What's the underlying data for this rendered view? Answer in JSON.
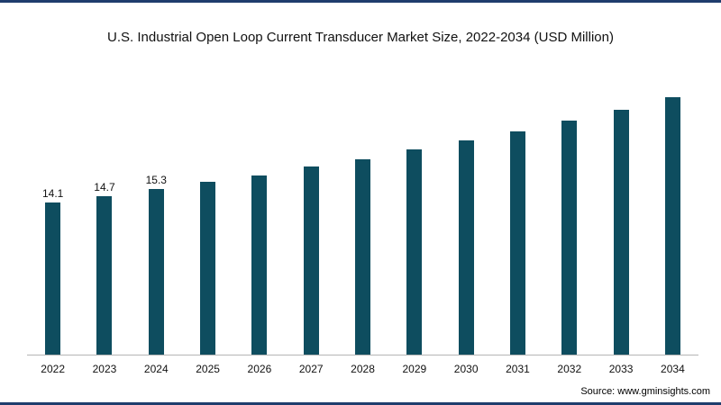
{
  "page": {
    "source": "Source: www.gminsights.com"
  },
  "colors": {
    "bar": "#0e4d5f",
    "frame": "#1f3d6d",
    "axis": "#b5b5b5"
  },
  "chart_data": {
    "type": "bar",
    "title": "U.S. Industrial Open Loop Current Transducer Market Size, 2022-2034 (USD Million)",
    "categories": [
      "2022",
      "2023",
      "2024",
      "2025",
      "2026",
      "2027",
      "2028",
      "2029",
      "2030",
      "2031",
      "2032",
      "2033",
      "2034"
    ],
    "values": [
      14.1,
      14.7,
      15.3,
      16.0,
      16.6,
      17.4,
      18.1,
      19.0,
      19.8,
      20.7,
      21.7,
      22.7,
      23.8
    ],
    "value_labels": [
      "14.1",
      "14.7",
      "15.3",
      "",
      "",
      "",
      "",
      "",
      "",
      "",
      "",
      "",
      ""
    ],
    "xlabel": "",
    "ylabel": "",
    "ylim": [
      0,
      25
    ],
    "grid": false,
    "legend": "none",
    "bar_color": "#0e4d5f",
    "source": "Source: www.gminsights.com"
  }
}
